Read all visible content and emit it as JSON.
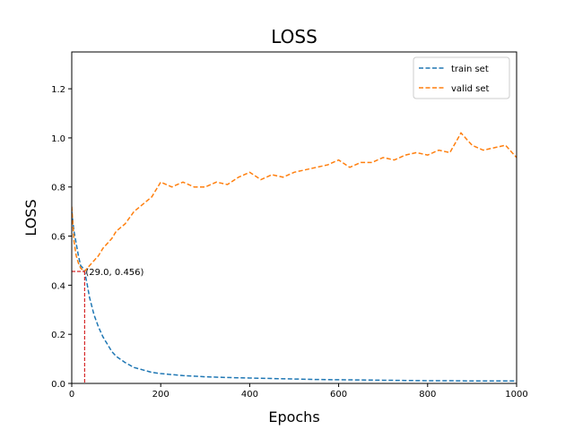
{
  "chart_data": {
    "type": "line",
    "title": "LOSS",
    "xlabel": "Epochs",
    "ylabel": "LOSS",
    "xlim": [
      0,
      1000
    ],
    "ylim": [
      0,
      1.35
    ],
    "xticks": [
      0,
      200,
      400,
      600,
      800,
      1000
    ],
    "yticks": [
      0.0,
      0.2,
      0.4,
      0.6,
      0.8,
      1.0,
      1.2
    ],
    "xtick_labels": [
      "0",
      "200",
      "400",
      "600",
      "800",
      "1000"
    ],
    "ytick_labels": [
      "0.0",
      "0.2",
      "0.4",
      "0.6",
      "0.8",
      "1.0",
      "1.2"
    ],
    "grid": false,
    "legend_position": "top-right",
    "series": [
      {
        "name": "train set",
        "color": "#1f77b4",
        "line_style": "dashed",
        "x": [
          0,
          5,
          10,
          15,
          20,
          25,
          29,
          35,
          40,
          50,
          60,
          70,
          80,
          90,
          100,
          120,
          140,
          160,
          180,
          200,
          250,
          300,
          350,
          400,
          450,
          500,
          550,
          600,
          650,
          700,
          750,
          800,
          850,
          900,
          950,
          1000
        ],
        "y": [
          0.7,
          0.62,
          0.57,
          0.52,
          0.48,
          0.47,
          0.456,
          0.4,
          0.35,
          0.28,
          0.23,
          0.19,
          0.16,
          0.13,
          0.11,
          0.085,
          0.065,
          0.055,
          0.045,
          0.04,
          0.032,
          0.027,
          0.024,
          0.022,
          0.02,
          0.018,
          0.016,
          0.015,
          0.014,
          0.013,
          0.012,
          0.011,
          0.011,
          0.01,
          0.01,
          0.01
        ]
      },
      {
        "name": "valid set",
        "color": "#ff7f0e",
        "line_style": "dashed",
        "x": [
          0,
          5,
          10,
          15,
          20,
          25,
          29,
          35,
          40,
          50,
          60,
          70,
          80,
          90,
          100,
          120,
          140,
          160,
          180,
          200,
          225,
          250,
          275,
          300,
          325,
          350,
          375,
          400,
          425,
          450,
          475,
          500,
          525,
          550,
          575,
          600,
          625,
          650,
          675,
          700,
          725,
          750,
          775,
          800,
          825,
          850,
          875,
          900,
          925,
          950,
          975,
          1000
        ],
        "y": [
          0.72,
          0.58,
          0.52,
          0.49,
          0.47,
          0.46,
          0.456,
          0.47,
          0.48,
          0.5,
          0.52,
          0.55,
          0.57,
          0.59,
          0.62,
          0.65,
          0.7,
          0.73,
          0.76,
          0.82,
          0.8,
          0.82,
          0.8,
          0.8,
          0.82,
          0.81,
          0.84,
          0.86,
          0.83,
          0.85,
          0.84,
          0.86,
          0.87,
          0.88,
          0.89,
          0.91,
          0.88,
          0.9,
          0.9,
          0.92,
          0.91,
          0.93,
          0.94,
          0.93,
          0.95,
          0.94,
          1.02,
          0.97,
          0.95,
          0.96,
          0.97,
          0.92
        ]
      }
    ],
    "annotation": {
      "text": "(29.0, 0.456)",
      "x": 29.0,
      "y": 0.456,
      "guide_color": "#d62728"
    }
  }
}
